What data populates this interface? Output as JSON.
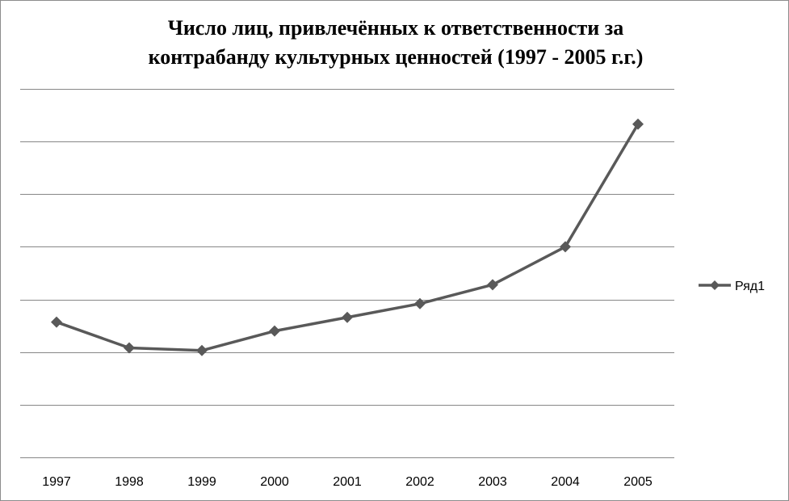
{
  "chart_data": {
    "type": "line",
    "title_line1": "Число лиц, привлечённых к ответственности за",
    "title_line2": "контрабанду культурных ценностей (1997 - 2005 г.г.)",
    "categories": [
      "1997",
      "1998",
      "1999",
      "2000",
      "2001",
      "2002",
      "2003",
      "2004",
      "2005"
    ],
    "series": [
      {
        "name": "Ряд1",
        "values": [
          2.27,
          1.78,
          1.73,
          2.1,
          2.36,
          2.62,
          2.98,
          3.7,
          6.03
        ],
        "color": "#595959",
        "marker": "diamond"
      }
    ],
    "ylim": [
      -0.3,
      6.7
    ],
    "y_gridlines": [
      -0.3,
      0.7,
      1.7,
      2.7,
      3.7,
      4.7,
      5.7,
      6.7
    ],
    "y_tick_labels_visible": false,
    "grid": true,
    "legend_position": "right"
  }
}
